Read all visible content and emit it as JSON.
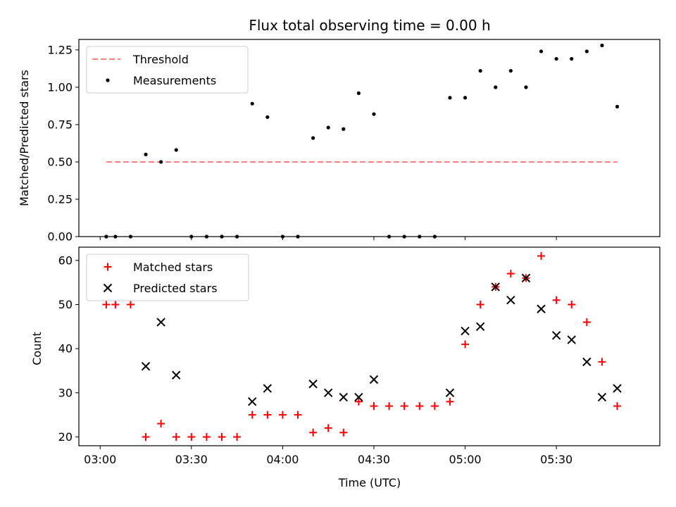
{
  "chart_data": [
    {
      "type": "scatter",
      "title": "Flux total observing time = 0.00 h",
      "ylabel": "Matched/Predicted stars",
      "xlabel": "",
      "xlim": [
        "02:53",
        "06:04"
      ],
      "ylim": [
        0,
        1.32
      ],
      "yticks": [
        "0.00",
        "0.25",
        "0.50",
        "0.75",
        "1.00",
        "1.25"
      ],
      "legend": "top-left",
      "series": [
        {
          "name": "Threshold",
          "style": "dashed-line",
          "color": "#ff7f7f",
          "points": [
            [
              "03:02",
              0.5
            ],
            [
              "05:50",
              0.5
            ]
          ]
        },
        {
          "name": "Measurements",
          "style": "dot",
          "color": "#000000",
          "points": [
            [
              "03:02",
              0.0
            ],
            [
              "03:05",
              0.0
            ],
            [
              "03:10",
              0.0
            ],
            [
              "03:15",
              0.55
            ],
            [
              "03:20",
              0.5
            ],
            [
              "03:25",
              0.58
            ],
            [
              "03:30",
              0.0
            ],
            [
              "03:35",
              0.0
            ],
            [
              "03:40",
              0.0
            ],
            [
              "03:45",
              0.0
            ],
            [
              "03:50",
              0.89
            ],
            [
              "03:55",
              0.8
            ],
            [
              "04:00",
              0.0
            ],
            [
              "04:05",
              0.0
            ],
            [
              "04:10",
              0.66
            ],
            [
              "04:15",
              0.73
            ],
            [
              "04:20",
              0.72
            ],
            [
              "04:25",
              0.96
            ],
            [
              "04:30",
              0.82
            ],
            [
              "04:35",
              0.0
            ],
            [
              "04:40",
              0.0
            ],
            [
              "04:45",
              0.0
            ],
            [
              "04:50",
              0.0
            ],
            [
              "04:55",
              0.93
            ],
            [
              "05:00",
              0.93
            ],
            [
              "05:05",
              1.11
            ],
            [
              "05:10",
              1.0
            ],
            [
              "05:15",
              1.11
            ],
            [
              "05:20",
              1.0
            ],
            [
              "05:25",
              1.24
            ],
            [
              "05:30",
              1.19
            ],
            [
              "05:35",
              1.19
            ],
            [
              "05:40",
              1.24
            ],
            [
              "05:45",
              1.28
            ],
            [
              "05:50",
              0.87
            ]
          ]
        }
      ]
    },
    {
      "type": "scatter",
      "title": "",
      "ylabel": "Count",
      "xlabel": "Time (UTC)",
      "xlim": [
        "02:53",
        "06:04"
      ],
      "ylim": [
        18,
        63
      ],
      "yticks": [
        "20",
        "30",
        "40",
        "50",
        "60"
      ],
      "xticks": [
        "03:00",
        "03:30",
        "04:00",
        "04:30",
        "05:00",
        "05:30"
      ],
      "legend": "top-left",
      "series": [
        {
          "name": "Matched stars",
          "style": "plus",
          "color": "#ff0000",
          "points": [
            [
              "03:02",
              50
            ],
            [
              "03:05",
              50
            ],
            [
              "03:10",
              50
            ],
            [
              "03:15",
              20
            ],
            [
              "03:20",
              23
            ],
            [
              "03:25",
              20
            ],
            [
              "03:30",
              20
            ],
            [
              "03:35",
              20
            ],
            [
              "03:40",
              20
            ],
            [
              "03:45",
              20
            ],
            [
              "03:50",
              25
            ],
            [
              "03:55",
              25
            ],
            [
              "04:00",
              25
            ],
            [
              "04:05",
              25
            ],
            [
              "04:10",
              21
            ],
            [
              "04:15",
              22
            ],
            [
              "04:20",
              21
            ],
            [
              "04:25",
              28
            ],
            [
              "04:30",
              27
            ],
            [
              "04:35",
              27
            ],
            [
              "04:40",
              27
            ],
            [
              "04:45",
              27
            ],
            [
              "04:50",
              27
            ],
            [
              "04:55",
              28
            ],
            [
              "05:00",
              41
            ],
            [
              "05:05",
              50
            ],
            [
              "05:10",
              54
            ],
            [
              "05:15",
              57
            ],
            [
              "05:20",
              56
            ],
            [
              "05:25",
              61
            ],
            [
              "05:30",
              51
            ],
            [
              "05:35",
              50
            ],
            [
              "05:40",
              46
            ],
            [
              "05:45",
              37
            ],
            [
              "05:50",
              27
            ]
          ]
        },
        {
          "name": "Predicted stars",
          "style": "cross",
          "color": "#000000",
          "points": [
            [
              "03:15",
              36
            ],
            [
              "03:20",
              46
            ],
            [
              "03:25",
              34
            ],
            [
              "03:50",
              28
            ],
            [
              "03:55",
              31
            ],
            [
              "04:10",
              32
            ],
            [
              "04:15",
              30
            ],
            [
              "04:20",
              29
            ],
            [
              "04:25",
              29
            ],
            [
              "04:30",
              33
            ],
            [
              "04:55",
              30
            ],
            [
              "05:00",
              44
            ],
            [
              "05:05",
              45
            ],
            [
              "05:10",
              54
            ],
            [
              "05:15",
              51
            ],
            [
              "05:20",
              56
            ],
            [
              "05:25",
              49
            ],
            [
              "05:30",
              43
            ],
            [
              "05:35",
              42
            ],
            [
              "05:40",
              37
            ],
            [
              "05:45",
              29
            ],
            [
              "05:50",
              31
            ]
          ]
        }
      ]
    }
  ]
}
